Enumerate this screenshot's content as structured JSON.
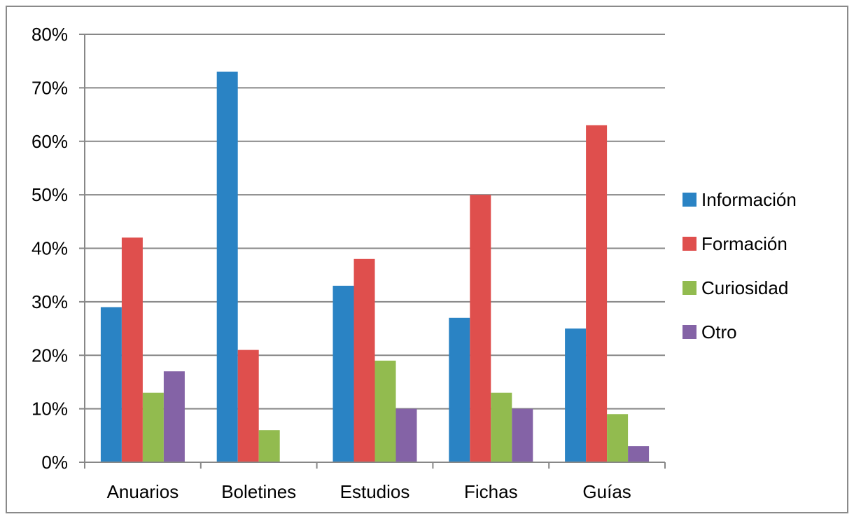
{
  "chart_data": {
    "type": "bar",
    "title": "",
    "xlabel": "",
    "ylabel": "",
    "ylim": [
      0,
      80
    ],
    "y_tick_step": 10,
    "y_tick_format": "percent",
    "grid": true,
    "legend_position": "right",
    "categories": [
      "Anuarios",
      "Boletines",
      "Estudios",
      "Fichas",
      "Guías"
    ],
    "series": [
      {
        "name": "Información",
        "color": "#2a83c4",
        "values": [
          29,
          73,
          33,
          27,
          25
        ]
      },
      {
        "name": "Formación",
        "color": "#df4f4d",
        "values": [
          42,
          21,
          38,
          50,
          63
        ]
      },
      {
        "name": "Curiosidad",
        "color": "#92bb4f",
        "values": [
          13,
          6,
          19,
          13,
          9
        ]
      },
      {
        "name": "Otro",
        "color": "#8463a6",
        "values": [
          17,
          0,
          10,
          10,
          3
        ]
      }
    ]
  }
}
